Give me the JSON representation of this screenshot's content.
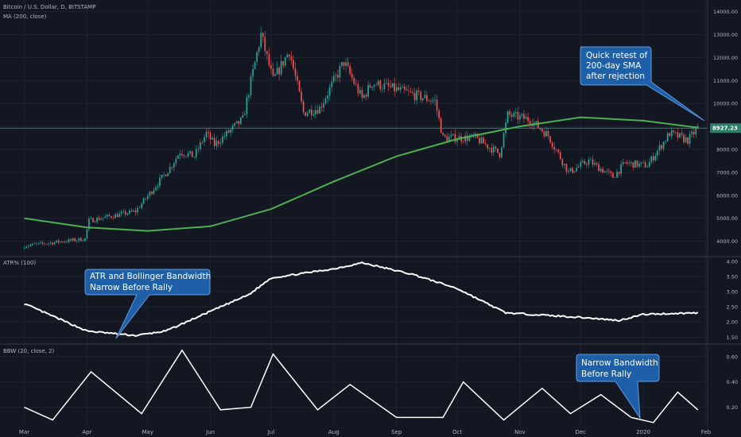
{
  "colors": {
    "background": "#131722",
    "grid": "#1f2330",
    "up_candle": "#26a69a",
    "down_candle": "#ef5350",
    "sma": "#4caf50",
    "indicator_line": "#ffffff",
    "callout_fill": "#1e5fa8",
    "callout_stroke": "#5d9be0",
    "axis_text": "#b2b5be",
    "price_tag": "#2e7d6b"
  },
  "header": {
    "symbol": "Bitcoin / U.S. Dollar, D, BITSTAMP",
    "ma_label": "MA (200, close)",
    "atr_label": "ATR% (100)",
    "bbw_label": "BBW (20, close, 2)"
  },
  "current_price": "8927.23",
  "callouts": {
    "sma": [
      "Quick retest of",
      "200-day SMA",
      "after rejection"
    ],
    "atr": [
      "ATR and Bollinger Bandwidth",
      "Narrow Before Rally"
    ],
    "bbw": [
      "Narrow Bandwidth",
      "Before Rally"
    ]
  },
  "chart_data": [
    {
      "type": "candlestick",
      "title": "Bitcoin / U.S. Dollar, D, BITSTAMP",
      "x_ticks": [
        "Mar",
        "Apr",
        "May",
        "Jun",
        "Jul",
        "Aug",
        "Sep",
        "Oct",
        "Nov",
        "Dec",
        "2020",
        "Feb"
      ],
      "y_ticks": [
        "14000.00",
        "13000.00",
        "12000.00",
        "11000.00",
        "10000.00",
        "9000.00",
        "8000.00",
        "7000.00",
        "6000.00",
        "5000.00",
        "4000.00"
      ],
      "ylim": [
        3500,
        14300
      ],
      "close_points": [
        {
          "x": "2019-03-01",
          "y": 3800
        },
        {
          "x": "2019-03-31",
          "y": 4100
        },
        {
          "x": "2019-04-02",
          "y": 4900
        },
        {
          "x": "2019-04-25",
          "y": 5300
        },
        {
          "x": "2019-05-12",
          "y": 7200
        },
        {
          "x": "2019-05-17",
          "y": 7900
        },
        {
          "x": "2019-05-24",
          "y": 7700
        },
        {
          "x": "2019-05-30",
          "y": 8700
        },
        {
          "x": "2019-06-03",
          "y": 8200
        },
        {
          "x": "2019-06-17",
          "y": 9300
        },
        {
          "x": "2019-06-26",
          "y": 13000
        },
        {
          "x": "2019-07-02",
          "y": 11000
        },
        {
          "x": "2019-07-10",
          "y": 12300
        },
        {
          "x": "2019-07-17",
          "y": 9600
        },
        {
          "x": "2019-07-25",
          "y": 9800
        },
        {
          "x": "2019-08-06",
          "y": 11800
        },
        {
          "x": "2019-08-15",
          "y": 10200
        },
        {
          "x": "2019-08-20",
          "y": 10900
        },
        {
          "x": "2019-09-05",
          "y": 10500
        },
        {
          "x": "2019-09-20",
          "y": 10100
        },
        {
          "x": "2019-09-24",
          "y": 8500
        },
        {
          "x": "2019-10-10",
          "y": 8500
        },
        {
          "x": "2019-10-22",
          "y": 7800
        },
        {
          "x": "2019-10-26",
          "y": 9500
        },
        {
          "x": "2019-11-06",
          "y": 9300
        },
        {
          "x": "2019-11-15",
          "y": 8600
        },
        {
          "x": "2019-11-25",
          "y": 7000
        },
        {
          "x": "2019-12-05",
          "y": 7500
        },
        {
          "x": "2019-12-17",
          "y": 6800
        },
        {
          "x": "2019-12-23",
          "y": 7400
        },
        {
          "x": "2020-01-03",
          "y": 7300
        },
        {
          "x": "2020-01-14",
          "y": 8700
        },
        {
          "x": "2020-01-23",
          "y": 8400
        },
        {
          "x": "2020-01-28",
          "y": 8927.23
        }
      ],
      "series": [
        {
          "name": "MA (200, close)",
          "points": [
            {
              "x": "2019-03-01",
              "y": 5000
            },
            {
              "x": "2019-04-01",
              "y": 4600
            },
            {
              "x": "2019-05-01",
              "y": 4450
            },
            {
              "x": "2019-06-01",
              "y": 4650
            },
            {
              "x": "2019-07-01",
              "y": 5400
            },
            {
              "x": "2019-08-01",
              "y": 6600
            },
            {
              "x": "2019-09-01",
              "y": 7700
            },
            {
              "x": "2019-10-01",
              "y": 8450
            },
            {
              "x": "2019-11-01",
              "y": 9000
            },
            {
              "x": "2019-12-01",
              "y": 9400
            },
            {
              "x": "2020-01-01",
              "y": 9250
            },
            {
              "x": "2020-01-28",
              "y": 8950
            }
          ]
        }
      ]
    },
    {
      "type": "line",
      "title": "ATR% (100)",
      "y_ticks": [
        "4.00",
        "3.50",
        "3.00",
        "2.50",
        "2.00",
        "1.50"
      ],
      "ylim": [
        1.35,
        4.1
      ],
      "series": [
        {
          "name": "ATR% (100)",
          "points": [
            {
              "x": "2019-03-01",
              "y": 2.6
            },
            {
              "x": "2019-04-01",
              "y": 1.7
            },
            {
              "x": "2019-04-25",
              "y": 1.55
            },
            {
              "x": "2019-05-10",
              "y": 1.7
            },
            {
              "x": "2019-06-01",
              "y": 2.35
            },
            {
              "x": "2019-06-20",
              "y": 2.9
            },
            {
              "x": "2019-07-01",
              "y": 3.45
            },
            {
              "x": "2019-08-01",
              "y": 3.75
            },
            {
              "x": "2019-08-15",
              "y": 3.95
            },
            {
              "x": "2019-09-10",
              "y": 3.55
            },
            {
              "x": "2019-10-01",
              "y": 3.1
            },
            {
              "x": "2019-10-25",
              "y": 2.3
            },
            {
              "x": "2019-12-01",
              "y": 2.15
            },
            {
              "x": "2019-12-20",
              "y": 2.05
            },
            {
              "x": "2020-01-01",
              "y": 2.25
            },
            {
              "x": "2020-01-28",
              "y": 2.3
            }
          ]
        }
      ]
    },
    {
      "type": "line",
      "title": "BBW (20, close, 2)",
      "y_ticks": [
        "0.60",
        "0.40",
        "0.20"
      ],
      "ylim": [
        0.06,
        0.68
      ],
      "series": [
        {
          "name": "BBW (20, close, 2)",
          "points": [
            {
              "x": "2019-03-01",
              "y": 0.2
            },
            {
              "x": "2019-03-15",
              "y": 0.1
            },
            {
              "x": "2019-04-03",
              "y": 0.48
            },
            {
              "x": "2019-04-28",
              "y": 0.15
            },
            {
              "x": "2019-05-18",
              "y": 0.65
            },
            {
              "x": "2019-06-06",
              "y": 0.18
            },
            {
              "x": "2019-06-21",
              "y": 0.2
            },
            {
              "x": "2019-07-02",
              "y": 0.62
            },
            {
              "x": "2019-07-24",
              "y": 0.18
            },
            {
              "x": "2019-08-09",
              "y": 0.38
            },
            {
              "x": "2019-09-01",
              "y": 0.12
            },
            {
              "x": "2019-09-24",
              "y": 0.12
            },
            {
              "x": "2019-10-04",
              "y": 0.4
            },
            {
              "x": "2019-10-24",
              "y": 0.1
            },
            {
              "x": "2019-11-12",
              "y": 0.35
            },
            {
              "x": "2019-11-26",
              "y": 0.15
            },
            {
              "x": "2019-12-11",
              "y": 0.3
            },
            {
              "x": "2019-12-26",
              "y": 0.12
            },
            {
              "x": "2020-01-06",
              "y": 0.08
            },
            {
              "x": "2020-01-18",
              "y": 0.32
            },
            {
              "x": "2020-01-28",
              "y": 0.18
            }
          ]
        }
      ]
    }
  ]
}
